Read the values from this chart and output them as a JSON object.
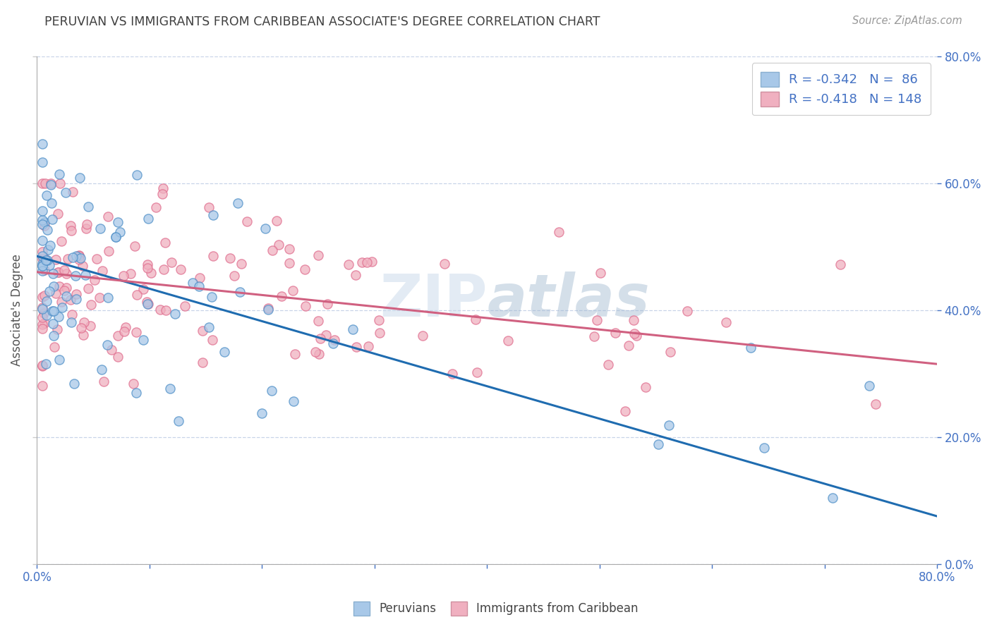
{
  "title": "PERUVIAN VS IMMIGRANTS FROM CARIBBEAN ASSOCIATE'S DEGREE CORRELATION CHART",
  "source_text": "Source: ZipAtlas.com",
  "ylabel": "Associate's Degree",
  "legend_blue_label": "R = -0.342   N =  86",
  "legend_pink_label": "R = -0.418   N = 148",
  "bottom_legend_blue": "Peruvians",
  "bottom_legend_pink": "Immigrants from Caribbean",
  "watermark": "ZIPatlas",
  "blue_scatter_color": "#a8c8e8",
  "blue_scatter_edge": "#5090c8",
  "pink_scatter_color": "#f0b0c0",
  "pink_scatter_edge": "#e07090",
  "blue_line_color": "#1f6cb0",
  "pink_line_color": "#d06080",
  "axis_label_color": "#4472c4",
  "title_color": "#404040",
  "grid_color": "#c8d4e8",
  "legend_patch_blue": "#a8c8e8",
  "legend_patch_pink": "#f0b0c0",
  "xmin": 0.0,
  "xmax": 0.8,
  "ymin": 0.0,
  "ymax": 0.8,
  "blue_line_x0": 0.0,
  "blue_line_y0": 0.485,
  "blue_line_x1": 0.8,
  "blue_line_y1": 0.075,
  "pink_line_x0": 0.0,
  "pink_line_y0": 0.46,
  "pink_line_x1": 0.8,
  "pink_line_y1": 0.315
}
